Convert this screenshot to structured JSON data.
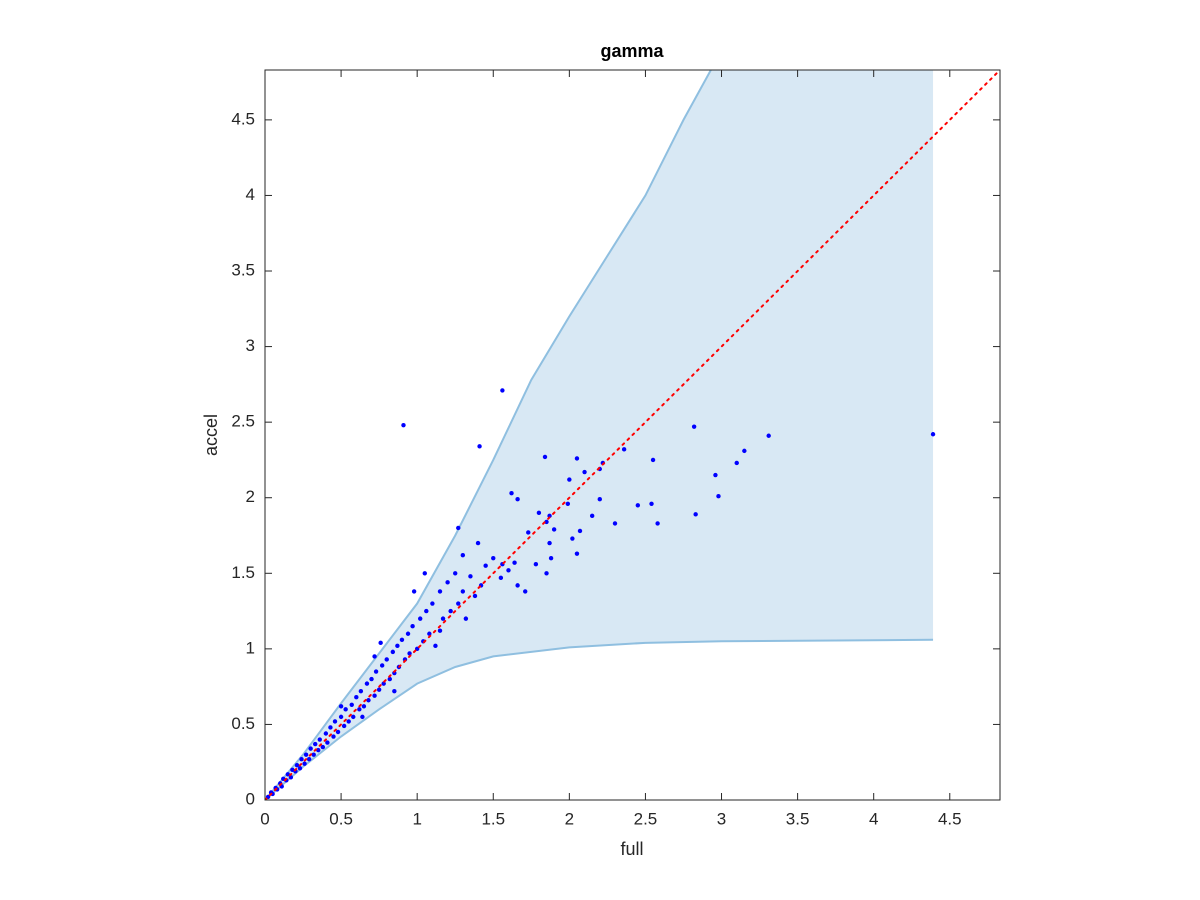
{
  "chart_data": {
    "type": "scatter",
    "title": "gamma",
    "x_label": "full",
    "y_label": "accel",
    "xlim": [
      0,
      4.83
    ],
    "ylim": [
      0,
      4.83
    ],
    "xticks": [
      0,
      0.5,
      1,
      1.5,
      2,
      2.5,
      3,
      3.5,
      4,
      4.5
    ],
    "yticks": [
      0,
      0.5,
      1,
      1.5,
      2,
      2.5,
      3,
      3.5,
      4,
      4.5
    ],
    "grid": false,
    "color": "#0000ff",
    "band_color": "#d8e8f4",
    "band_edge_color": "#8fbfe0",
    "bounds": {
      "upper": {
        "x": [
          0,
          0.25,
          0.5,
          0.75,
          1.0,
          1.25,
          1.5,
          1.75,
          2.0,
          2.25,
          2.5,
          2.75,
          2.93,
          4.39
        ],
        "y": [
          0,
          0.3,
          0.64,
          0.97,
          1.3,
          1.75,
          2.25,
          2.78,
          3.2,
          3.6,
          4.0,
          4.5,
          4.83,
          4.83
        ]
      },
      "lower": {
        "x": [
          0,
          0.25,
          0.5,
          0.75,
          1.0,
          1.25,
          1.5,
          2.0,
          2.5,
          3.0,
          4.39
        ],
        "y": [
          0,
          0.22,
          0.42,
          0.6,
          0.77,
          0.88,
          0.95,
          1.01,
          1.04,
          1.05,
          1.06
        ]
      }
    },
    "reference_line": {
      "x": [
        0,
        4.83
      ],
      "y": [
        0,
        4.83
      ],
      "color": "#ff0000"
    },
    "x": [
      0.91,
      1.56,
      1.41,
      2.82,
      3.31,
      3.15,
      3.1,
      2.96,
      2.98,
      2.83,
      4.39,
      2.55,
      2.58,
      2.54,
      2.45,
      2.36,
      2.3,
      2.22,
      2.2,
      2.15,
      2.2,
      2.05,
      2.1,
      2.0,
      1.99,
      1.84,
      1.87,
      1.85,
      1.9,
      1.8,
      1.78,
      1.73,
      1.66,
      1.64,
      1.6,
      1.56,
      1.62,
      1.66,
      1.5,
      1.55,
      1.71,
      1.88,
      1.85,
      1.87,
      2.05,
      2.07,
      2.02,
      0.02,
      0.04,
      0.05,
      0.07,
      0.08,
      0.1,
      0.11,
      0.12,
      0.14,
      0.15,
      0.17,
      0.18,
      0.2,
      0.21,
      0.23,
      0.24,
      0.26,
      0.27,
      0.29,
      0.3,
      0.32,
      0.33,
      0.35,
      0.36,
      0.38,
      0.4,
      0.41,
      0.43,
      0.45,
      0.46,
      0.48,
      0.5,
      0.52,
      0.53,
      0.55,
      0.57,
      0.58,
      0.6,
      0.62,
      0.63,
      0.65,
      0.67,
      0.68,
      0.7,
      0.72,
      0.73,
      0.75,
      0.77,
      0.78,
      0.8,
      0.82,
      0.84,
      0.85,
      0.87,
      0.88,
      0.9,
      0.92,
      0.94,
      0.95,
      0.97,
      1.0,
      1.02,
      1.04,
      1.06,
      1.08,
      1.1,
      1.12,
      1.15,
      1.17,
      1.2,
      1.22,
      1.25,
      1.27,
      1.3,
      1.32,
      1.35,
      1.38,
      1.4,
      1.42,
      1.45,
      1.27,
      1.05,
      0.98,
      0.76,
      0.72,
      0.5,
      0.64,
      0.85,
      1.15,
      1.3
    ],
    "values": [
      2.48,
      2.71,
      2.34,
      2.47,
      2.41,
      2.31,
      2.23,
      2.15,
      2.01,
      1.89,
      2.42,
      2.25,
      1.83,
      1.96,
      1.95,
      2.32,
      1.83,
      2.23,
      2.19,
      1.88,
      1.99,
      2.26,
      2.17,
      2.12,
      1.96,
      2.27,
      1.88,
      1.84,
      1.79,
      1.9,
      1.56,
      1.77,
      1.42,
      1.57,
      1.52,
      1.56,
      2.03,
      1.99,
      1.6,
      1.47,
      1.38,
      1.6,
      1.5,
      1.7,
      1.63,
      1.78,
      1.73,
      0.02,
      0.05,
      0.04,
      0.08,
      0.07,
      0.11,
      0.09,
      0.14,
      0.13,
      0.17,
      0.15,
      0.2,
      0.19,
      0.23,
      0.21,
      0.27,
      0.24,
      0.3,
      0.27,
      0.34,
      0.3,
      0.37,
      0.33,
      0.4,
      0.35,
      0.44,
      0.38,
      0.48,
      0.42,
      0.52,
      0.45,
      0.55,
      0.49,
      0.6,
      0.52,
      0.63,
      0.55,
      0.68,
      0.6,
      0.72,
      0.62,
      0.77,
      0.66,
      0.8,
      0.69,
      0.85,
      0.73,
      0.89,
      0.77,
      0.93,
      0.8,
      0.98,
      0.84,
      1.02,
      0.88,
      1.06,
      0.93,
      1.1,
      0.97,
      1.15,
      1.0,
      1.2,
      1.05,
      1.25,
      1.1,
      1.3,
      1.02,
      1.38,
      1.2,
      1.44,
      1.25,
      1.5,
      1.3,
      1.62,
      1.2,
      1.48,
      1.35,
      1.7,
      1.42,
      1.55,
      1.8,
      1.5,
      1.38,
      1.04,
      0.95,
      0.62,
      0.55,
      0.72,
      1.12,
      1.38
    ]
  }
}
